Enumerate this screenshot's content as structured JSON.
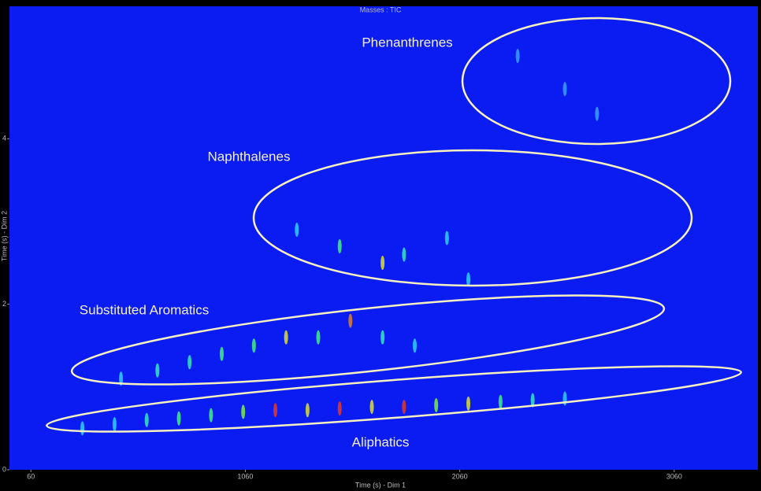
{
  "chart_data": {
    "type": "scatter",
    "title": "Masses : TIC",
    "x_label": "Time (s) - Dim 1",
    "y_label": "Time (s) - Dim 2",
    "xlim": [
      -40,
      3450
    ],
    "xticks": [
      60,
      1060,
      2060,
      3060
    ],
    "ylim": [
      0,
      5.6
    ],
    "yticks": [
      0,
      2,
      4
    ],
    "background": "#0a1cf2",
    "x": [
      300,
      450,
      600,
      750,
      900,
      1050,
      1200,
      1350,
      1500,
      1650,
      1800,
      1950,
      2100,
      2250,
      2400,
      2550,
      480,
      650,
      800,
      950,
      1100,
      1250,
      1400,
      1550,
      1700,
      1850,
      1300,
      1500,
      1700,
      1800,
      2000,
      2100,
      2330,
      2550,
      2700
    ],
    "y": [
      0.5,
      0.55,
      0.6,
      0.62,
      0.66,
      0.7,
      0.72,
      0.72,
      0.74,
      0.76,
      0.76,
      0.78,
      0.8,
      0.82,
      0.84,
      0.86,
      1.1,
      1.2,
      1.3,
      1.4,
      1.5,
      1.6,
      1.6,
      1.8,
      1.6,
      1.5,
      2.9,
      2.7,
      2.5,
      2.6,
      2.8,
      2.3,
      5.0,
      4.6,
      4.3
    ],
    "colors": [
      "#2fd0ff",
      "#2fd0ff",
      "#35e6c0",
      "#44f080",
      "#44f080",
      "#7cf040",
      "#e83a20",
      "#d8e030",
      "#e83a20",
      "#d8e030",
      "#e83a20",
      "#7cf040",
      "#d8e030",
      "#44f080",
      "#35e6c0",
      "#2fd0ff",
      "#2fd0ff",
      "#35e6c0",
      "#35e6c0",
      "#44f080",
      "#44f080",
      "#d8e030",
      "#44f080",
      "#e0802a",
      "#35e6c0",
      "#2fd0ff",
      "#2fd0ff",
      "#44f080",
      "#d8e030",
      "#35e6c0",
      "#2fd0ff",
      "#2fd0ff",
      "#3aa0ff",
      "#3aa0ff",
      "#3aa0ff"
    ],
    "regions": [
      "Phenanthrenes",
      "Naphthalenes",
      "Substituted Aromatics",
      "Aliphatics"
    ]
  }
}
